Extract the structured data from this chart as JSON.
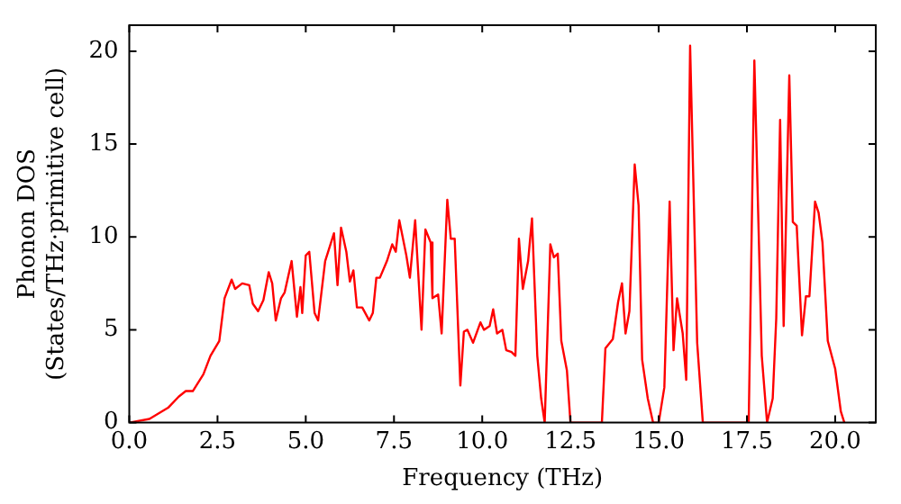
{
  "chart_data": {
    "type": "line",
    "xlabel": "Frequency (THz)",
    "ylabel": "Phonon DOS\n(States/THz·primitive cell)",
    "xlim": [
      0,
      21.15
    ],
    "ylim": [
      0,
      21.4
    ],
    "xticks": [
      {
        "value": 0,
        "label": "0.0"
      },
      {
        "value": 2.5,
        "label": "2.5"
      },
      {
        "value": 5,
        "label": "5.0"
      },
      {
        "value": 7.5,
        "label": "7.5"
      },
      {
        "value": 10,
        "label": "10.0"
      },
      {
        "value": 12.5,
        "label": "12.5"
      },
      {
        "value": 15,
        "label": "15.0"
      },
      {
        "value": 17.5,
        "label": "17.5"
      },
      {
        "value": 20,
        "label": "20.0"
      }
    ],
    "yticks": [
      0,
      5,
      10,
      15,
      20
    ],
    "grid": false,
    "legend": false,
    "marker": "none",
    "line_style": "solid",
    "series": [
      {
        "color": "#ff0000",
        "x": [
          0,
          0.57,
          1.1,
          1.4,
          1.6,
          1.8,
          2.1,
          2.3,
          2.55,
          2.7,
          2.9,
          3.0,
          3.2,
          3.4,
          3.5,
          3.65,
          3.8,
          3.95,
          4.05,
          4.15,
          4.3,
          4.4,
          4.6,
          4.75,
          4.85,
          4.9,
          5.0,
          5.1,
          5.25,
          5.35,
          5.55,
          5.8,
          5.9,
          6.0,
          6.15,
          6.25,
          6.35,
          6.45,
          6.6,
          6.8,
          6.9,
          7.0,
          7.1,
          7.3,
          7.45,
          7.55,
          7.65,
          7.85,
          7.95,
          8.1,
          8.28,
          8.39,
          8.54,
          8.59,
          8.75,
          8.85,
          9.01,
          9.11,
          9.22,
          9.38,
          9.48,
          9.58,
          9.74,
          9.95,
          10.05,
          10.21,
          10.31,
          10.42,
          10.57,
          10.68,
          10.83,
          10.94,
          11.04,
          11.15,
          11.3,
          11.41,
          11.56,
          11.67,
          11.77,
          11.93,
          12.03,
          12.14,
          12.24,
          12.4,
          12.5,
          13.39,
          13.49,
          13.7,
          13.85,
          13.96,
          14.06,
          14.17,
          14.32,
          14.43,
          14.53,
          14.69,
          14.84,
          15.0,
          15.16,
          15.31,
          15.42,
          15.52,
          15.68,
          15.78,
          15.89,
          16.09,
          16.25,
          17.55,
          17.71,
          17.92,
          18.07,
          18.23,
          18.33,
          18.44,
          18.54,
          18.7,
          18.8,
          18.91,
          19.06,
          19.17,
          19.27,
          19.43,
          19.53,
          19.64,
          19.79,
          20.0,
          20.16,
          20.26
        ],
        "values": [
          0,
          0.2,
          0.8,
          1.4,
          1.7,
          1.7,
          2.6,
          3.6,
          4.4,
          6.7,
          7.7,
          7.2,
          7.5,
          7.4,
          6.4,
          6.0,
          6.6,
          8.1,
          7.5,
          5.5,
          6.7,
          7.0,
          8.7,
          5.7,
          7.3,
          5.9,
          9.0,
          9.2,
          5.9,
          5.5,
          8.7,
          10.2,
          7.4,
          10.5,
          9.2,
          7.6,
          8.2,
          6.2,
          6.2,
          5.5,
          5.9,
          7.8,
          7.8,
          8.7,
          9.6,
          9.2,
          10.9,
          9.0,
          7.8,
          10.9,
          5.0,
          10.4,
          9.7,
          6.7,
          6.9,
          4.8,
          12.0,
          9.9,
          9.9,
          2.0,
          4.9,
          5.0,
          4.3,
          5.4,
          5.0,
          5.2,
          6.1,
          4.8,
          5.0,
          3.9,
          3.8,
          3.6,
          9.9,
          7.2,
          8.7,
          11.0,
          3.6,
          1.3,
          0,
          9.6,
          8.9,
          9.1,
          4.4,
          2.8,
          0,
          0,
          4.0,
          4.5,
          6.5,
          7.5,
          4.8,
          6.0,
          13.9,
          11.7,
          3.4,
          1.3,
          0,
          0,
          1.9,
          11.9,
          3.9,
          6.7,
          4.8,
          2.3,
          20.3,
          4.3,
          0,
          0,
          19.5,
          3.6,
          0,
          1.3,
          5.6,
          16.3,
          5.2,
          18.7,
          10.8,
          10.6,
          4.7,
          6.8,
          6.8,
          11.9,
          11.3,
          9.7,
          4.4,
          2.9,
          0.6,
          0
        ]
      }
    ]
  }
}
